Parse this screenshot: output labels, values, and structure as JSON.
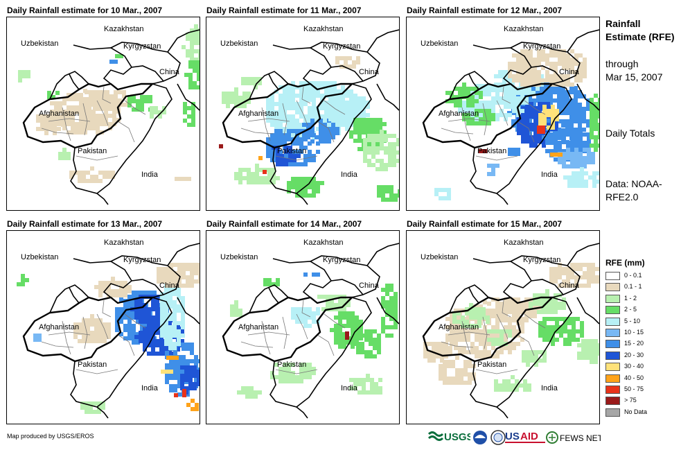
{
  "panels": [
    {
      "title": "Daily Rainfall estimate for 10 Mar., 2007"
    },
    {
      "title": "Daily Rainfall estimate for 11 Mar., 2007"
    },
    {
      "title": "Daily Rainfall estimate for 12 Mar., 2007"
    },
    {
      "title": "Daily Rainfall estimate for 13 Mar., 2007"
    },
    {
      "title": "Daily Rainfall estimate for 14 Mar., 2007"
    },
    {
      "title": "Daily Rainfall estimate for 15 Mar., 2007"
    }
  ],
  "map_labels": {
    "kazakhstan": "Kazakhstan",
    "uzbekistan": "Uzbekistan",
    "kyrgyzstan": "Kyrgyzstan",
    "china": "China",
    "afghanistan": "Afghanistan",
    "pakistan": "Pakistan",
    "india": "India"
  },
  "side": {
    "title": "Rainfall Estimate (RFE)",
    "through": "through",
    "date": "Mar 15, 2007",
    "daily": "Daily Totals",
    "data": "Data: NOAA-RFE2.0"
  },
  "legend": {
    "title": "RFE (mm)",
    "items": [
      {
        "label": "0 - 0.1",
        "color": "#ffffff"
      },
      {
        "label": "0.1 - 1",
        "color": "#e8d9bd"
      },
      {
        "label": "1 - 2",
        "color": "#b8f0b0"
      },
      {
        "label": "2 - 5",
        "color": "#66dd66"
      },
      {
        "label": "5 - 10",
        "color": "#b7f0f6"
      },
      {
        "label": "10 - 15",
        "color": "#78b8f4"
      },
      {
        "label": "15 - 20",
        "color": "#3f8fe8"
      },
      {
        "label": "20 - 30",
        "color": "#1f55d6"
      },
      {
        "label": "30 - 40",
        "color": "#ffe27a"
      },
      {
        "label": "40 - 50",
        "color": "#ffa31a"
      },
      {
        "label": "50 - 75",
        "color": "#e8331a"
      },
      {
        "label": "> 75",
        "color": "#9a1a1a"
      },
      {
        "label": "No Data",
        "color": "#a6a6a6"
      }
    ]
  },
  "footer": {
    "credit": "Map produced by USGS/EROS",
    "logos": [
      "USGS",
      "USAID",
      "FEWS NET"
    ]
  }
}
